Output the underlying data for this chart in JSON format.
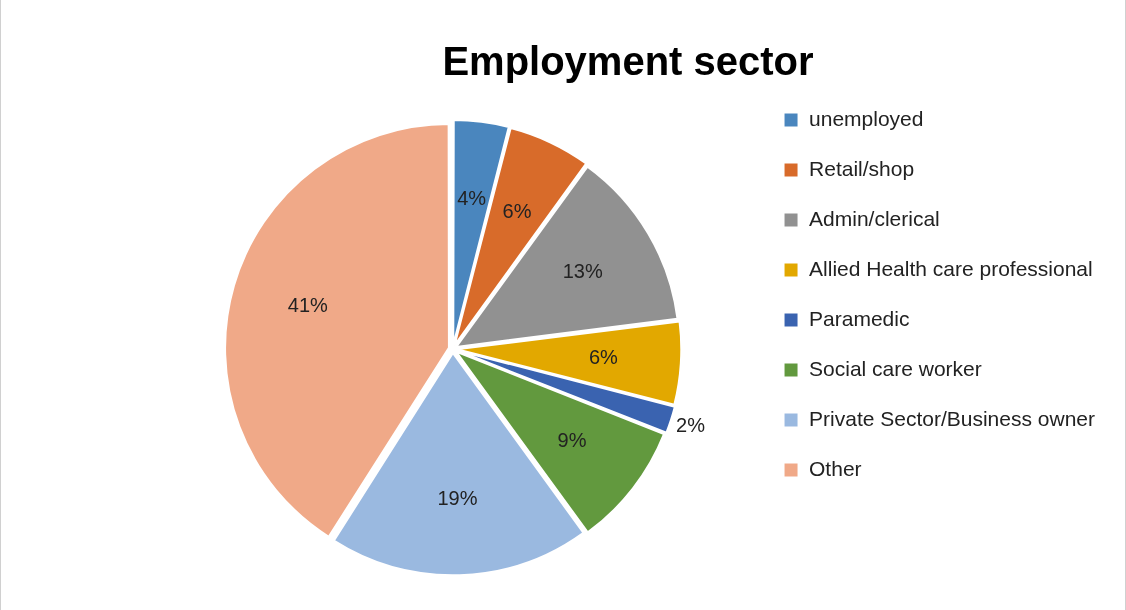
{
  "chart_data": {
    "type": "pie",
    "title": "Employment sector",
    "categories": [
      "unemployed",
      "Retail/shop",
      "Admin/clerical",
      "Allied Health care professional",
      "Paramedic",
      "Social care worker",
      "Private Sector/Business owner",
      "Other"
    ],
    "values": [
      4,
      6,
      13,
      6,
      2,
      9,
      19,
      41
    ],
    "value_labels": [
      "4%",
      "6%",
      "13%",
      "6%",
      "2%",
      "9%",
      "19%",
      "41%"
    ],
    "colors": [
      "#4a86be",
      "#d86b2a",
      "#919191",
      "#e2a800",
      "#3a63b0",
      "#62993e",
      "#9ab9e0",
      "#f0a988"
    ],
    "legend": "right"
  }
}
